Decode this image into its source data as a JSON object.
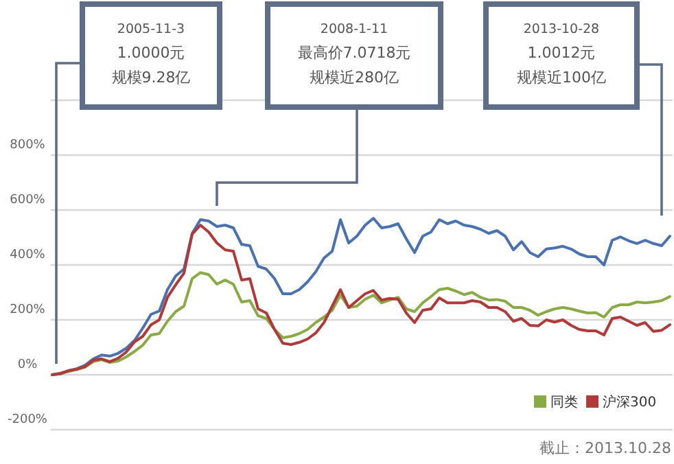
{
  "chart_data": {
    "type": "line",
    "categories": [
      null,
      null,
      null,
      null,
      null,
      null,
      null,
      null,
      null,
      null,
      null,
      null,
      null,
      null,
      null,
      null,
      null,
      null,
      null,
      null,
      null,
      null,
      null,
      null,
      null,
      null,
      null,
      null,
      null,
      null,
      null,
      null,
      null,
      null,
      null,
      null,
      null,
      null,
      null,
      null,
      null,
      null,
      null,
      null,
      null,
      null,
      null,
      null,
      null,
      null,
      null,
      null,
      null,
      null,
      null,
      null,
      null,
      null,
      null,
      null,
      null,
      null,
      null,
      null,
      null,
      null,
      null,
      null,
      null,
      null,
      null,
      null,
      null,
      null,
      null,
      null
    ],
    "series": [
      {
        "color": "#4a72b0",
        "values": [
          0,
          3,
          15,
          22,
          35,
          58,
          72,
          68,
          78,
          97,
          125,
          170,
          220,
          232,
          310,
          360,
          385,
          515,
          565,
          560,
          540,
          545,
          535,
          475,
          470,
          395,
          385,
          350,
          295,
          295,
          310,
          338,
          375,
          425,
          450,
          565,
          480,
          505,
          545,
          570,
          535,
          540,
          550,
          495,
          445,
          505,
          520,
          565,
          550,
          560,
          545,
          540,
          530,
          515,
          525,
          505,
          455,
          485,
          445,
          430,
          458,
          462,
          468,
          458,
          440,
          430,
          430,
          400,
          490,
          502,
          488,
          478,
          490,
          478,
          470,
          505
        ]
      },
      {
        "name": "同类",
        "color": "#8aaa45",
        "values": [
          0,
          5,
          12,
          20,
          28,
          48,
          55,
          45,
          50,
          65,
          85,
          108,
          145,
          150,
          195,
          230,
          250,
          350,
          372,
          365,
          330,
          345,
          330,
          265,
          270,
          215,
          205,
          165,
          135,
          140,
          150,
          165,
          190,
          210,
          235,
          290,
          245,
          250,
          275,
          290,
          262,
          272,
          282,
          240,
          230,
          262,
          285,
          310,
          315,
          305,
          292,
          300,
          282,
          272,
          274,
          268,
          245,
          245,
          235,
          217,
          230,
          240,
          245,
          240,
          232,
          225,
          226,
          210,
          245,
          255,
          255,
          265,
          262,
          265,
          270,
          285
        ]
      },
      {
        "name": "沪深300",
        "color": "#b03a3a",
        "values": [
          0,
          5,
          15,
          20,
          30,
          53,
          58,
          48,
          60,
          83,
          120,
          140,
          182,
          200,
          282,
          328,
          370,
          512,
          545,
          520,
          480,
          455,
          450,
          345,
          350,
          240,
          225,
          165,
          115,
          110,
          118,
          130,
          152,
          190,
          250,
          310,
          245,
          270,
          295,
          307,
          272,
          278,
          275,
          225,
          190,
          235,
          240,
          280,
          262,
          262,
          262,
          270,
          265,
          245,
          245,
          230,
          195,
          205,
          180,
          178,
          200,
          192,
          200,
          180,
          165,
          160,
          160,
          145,
          205,
          210,
          195,
          180,
          190,
          158,
          162,
          182
        ]
      }
    ],
    "ylim": [
      -200,
      1000
    ],
    "yticks": [
      {
        "value": -200,
        "label": "-200%"
      },
      {
        "value": 0,
        "label": "0%"
      },
      {
        "value": 200,
        "label": "200%"
      },
      {
        "value": 400,
        "label": "400%"
      },
      {
        "value": 600,
        "label": "600%"
      },
      {
        "value": 800,
        "label": "800%"
      },
      {
        "value": 1000,
        "label": null
      }
    ],
    "grid": "y",
    "legend": "bottom right",
    "marker": "none",
    "line_style": "solid",
    "annotations": [
      "2005-11-3",
      "1.0000元",
      "规模9.28亿",
      "2008-1-11",
      "最高价7.0718元",
      "规模近280亿",
      "2013-10-28",
      "1.0012元",
      "规模近100亿",
      "截止：2013.10.28"
    ]
  }
}
